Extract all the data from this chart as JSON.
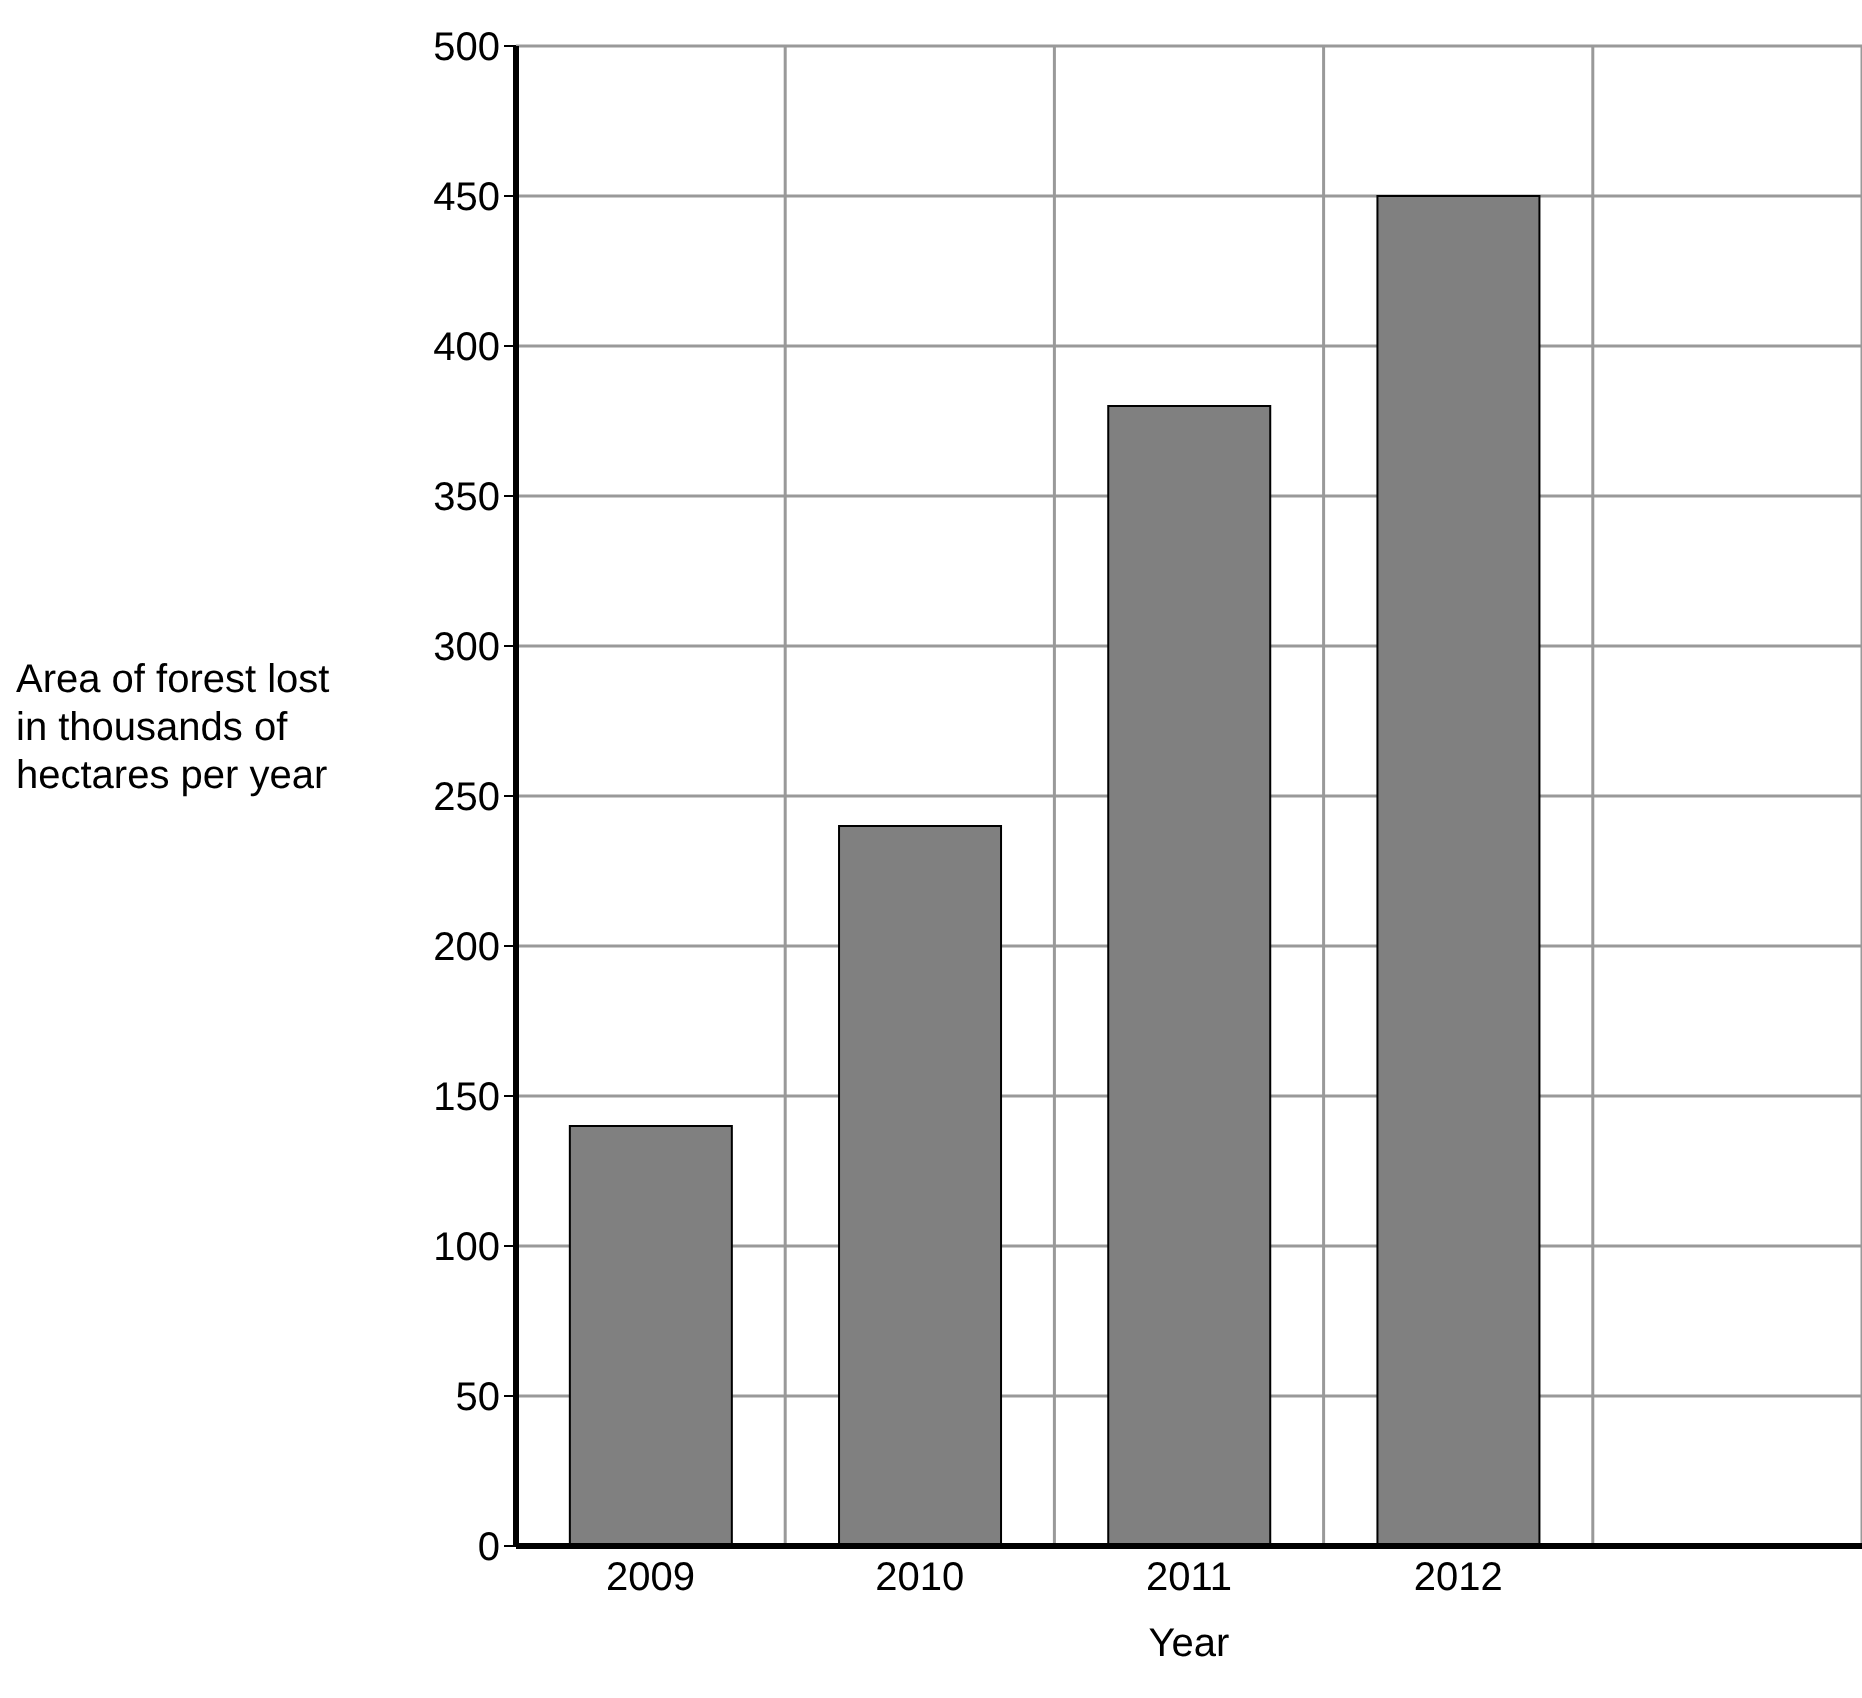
{
  "chart_data": {
    "type": "bar",
    "xlabel": "Year",
    "ylabel": "Area of forest lost in thousands of hectares per year",
    "categories": [
      "2009",
      "2010",
      "2011",
      "2012",
      null
    ],
    "values": [
      140,
      240,
      380,
      450,
      null
    ],
    "color": "#808080",
    "ylim": [
      0,
      500
    ],
    "yticks": [
      0,
      50,
      100,
      150,
      200,
      250,
      300,
      350,
      400,
      450,
      500
    ],
    "grid": true
  }
}
